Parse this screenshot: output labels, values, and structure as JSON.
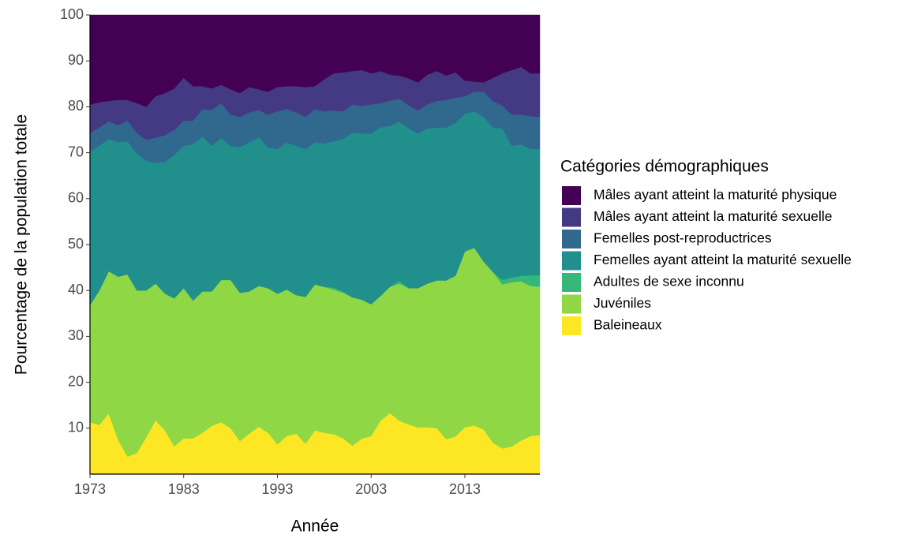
{
  "chart_data": {
    "type": "stacked_area",
    "x_label": "Année",
    "y_label": "Pourcentage de la population totale",
    "legend_title": "Catégories démographiques",
    "x": [
      1973,
      1974,
      1975,
      1976,
      1977,
      1978,
      1979,
      1980,
      1981,
      1982,
      1983,
      1984,
      1985,
      1986,
      1987,
      1988,
      1989,
      1990,
      1991,
      1992,
      1993,
      1994,
      1995,
      1996,
      1997,
      1998,
      1999,
      2000,
      2001,
      2002,
      2003,
      2004,
      2005,
      2006,
      2007,
      2008,
      2009,
      2010,
      2011,
      2012,
      2013,
      2014,
      2015,
      2016,
      2017,
      2018,
      2019,
      2020,
      2021
    ],
    "xlim": [
      1973,
      2021
    ],
    "xticks": [
      1973,
      1983,
      1993,
      2003,
      2013
    ],
    "ylim": [
      0,
      100
    ],
    "yticks": [
      10,
      20,
      30,
      40,
      50,
      60,
      70,
      80,
      90,
      100
    ],
    "legend_position": "right",
    "series": [
      {
        "name": "Mâles ayant atteint la maturité physique",
        "color": "#440154",
        "values": [
          19.5,
          19,
          18.7,
          18.5,
          18.5,
          19.2,
          20,
          17.7,
          17,
          16,
          13.7,
          15.5,
          15.5,
          16,
          15.2,
          16.2,
          17,
          15.7,
          16.2,
          16.7,
          15.7,
          15.5,
          15.5,
          15.7,
          15.5,
          14,
          12.7,
          12.5,
          12.2,
          12,
          12.7,
          12.2,
          13,
          13.2,
          13.8,
          14.7,
          13,
          12.2,
          13.2,
          12.5,
          14.3,
          14.5,
          14.7,
          13.7,
          12.7,
          12,
          11.3,
          12.7,
          12.7
        ]
      },
      {
        "name": "Mâles ayant atteint la maturité sexuelle",
        "color": "#443A83",
        "values": [
          6.2,
          5.5,
          4.5,
          5.5,
          4.5,
          6.5,
          7.2,
          9,
          9.2,
          9,
          9.3,
          7.5,
          5,
          4.7,
          4,
          5.5,
          5.2,
          5.5,
          4.5,
          5,
          5.3,
          5,
          5.7,
          6.5,
          5,
          7,
          8.1,
          8.5,
          7.3,
          7.8,
          6.8,
          7,
          5.7,
          5,
          5.9,
          6.1,
          6.5,
          6.5,
          5.3,
          5.5,
          3.4,
          2.2,
          2,
          5.1,
          7,
          9.7,
          10.4,
          9.3,
          9.5
        ]
      },
      {
        "name": "Femelles post-reproductrices",
        "color": "#31688E",
        "values": [
          4,
          4,
          3.8,
          3.7,
          4.5,
          4.5,
          4.5,
          5.5,
          5.8,
          5.5,
          5.5,
          5.2,
          6,
          7.8,
          7.6,
          6.8,
          6.6,
          6.5,
          6,
          7.1,
          8.2,
          7.3,
          7.3,
          7,
          7.2,
          7,
          6.7,
          6,
          6.2,
          6,
          6.3,
          5.3,
          5.5,
          5,
          5,
          5,
          5.2,
          5.8,
          6,
          5.5,
          3.8,
          4.3,
          5.5,
          5.7,
          5,
          6.8,
          6.5,
          7.2,
          7
        ]
      },
      {
        "name": "Femelles ayant atteint la maturité sexuelle",
        "color": "#21908C",
        "values": [
          33.5,
          31.5,
          28.8,
          29.3,
          29,
          29.8,
          28.3,
          26.3,
          28.7,
          31.2,
          31,
          34,
          33.7,
          31.7,
          30.9,
          29.2,
          31.7,
          32.5,
          32.3,
          30.7,
          31.5,
          32,
          32.5,
          32.2,
          31,
          31.2,
          31.9,
          33.2,
          35.8,
          36.2,
          37.2,
          36.7,
          35,
          34.7,
          34.8,
          33.7,
          33.8,
          33.3,
          33.3,
          33.3,
          30,
          29.7,
          31.5,
          31.5,
          33,
          28.7,
          28.6,
          27.5,
          27.5
        ]
      },
      {
        "name": "Adultes de sexe inconnu",
        "color": "#35B779",
        "values": [
          0,
          0,
          0,
          0,
          0,
          0,
          0,
          0,
          0,
          0,
          0,
          0,
          0,
          0,
          0,
          0,
          0,
          0,
          0,
          0,
          0,
          0,
          0,
          0,
          0,
          0,
          0.4,
          0.3,
          0,
          0,
          0,
          0,
          0,
          0.6,
          0,
          0,
          0,
          0,
          0,
          0,
          0,
          0,
          0,
          0,
          1,
          1,
          1.2,
          2.3,
          2.5
        ]
      },
      {
        "name": "Juvéniles",
        "color": "#8FD744",
        "values": [
          25.5,
          29.3,
          31,
          35.5,
          39.7,
          35.4,
          32,
          29.8,
          29.8,
          32.3,
          32.7,
          30,
          30.8,
          29.3,
          31,
          32.3,
          32.3,
          31,
          30.7,
          31.5,
          32.8,
          31.9,
          30.2,
          32,
          31.8,
          31.8,
          31.5,
          31.7,
          32.3,
          30.3,
          28.7,
          27.2,
          27.5,
          29.9,
          29.7,
          30.3,
          31.3,
          32.2,
          34.6,
          35,
          38.3,
          38.7,
          36.6,
          37.2,
          35.7,
          35.8,
          34.7,
          32.7,
          32.3
        ]
      },
      {
        "name": "Baleineaux",
        "color": "#FDE725",
        "values": [
          11.3,
          10.7,
          13.2,
          7.5,
          3.8,
          4.6,
          8,
          11.7,
          9.5,
          6,
          7.8,
          7.8,
          9,
          10.5,
          11.3,
          10,
          7.2,
          8.8,
          10.3,
          9,
          6.5,
          8.3,
          8.8,
          6.6,
          9.5,
          9,
          8.7,
          7.8,
          6.2,
          7.7,
          8.3,
          11.6,
          13.3,
          11.6,
          10.8,
          10.2,
          10.2,
          10,
          7.6,
          8.2,
          10.2,
          10.6,
          9.7,
          6.8,
          5.6,
          6,
          7.3,
          8.3,
          8.5
        ]
      }
    ]
  }
}
